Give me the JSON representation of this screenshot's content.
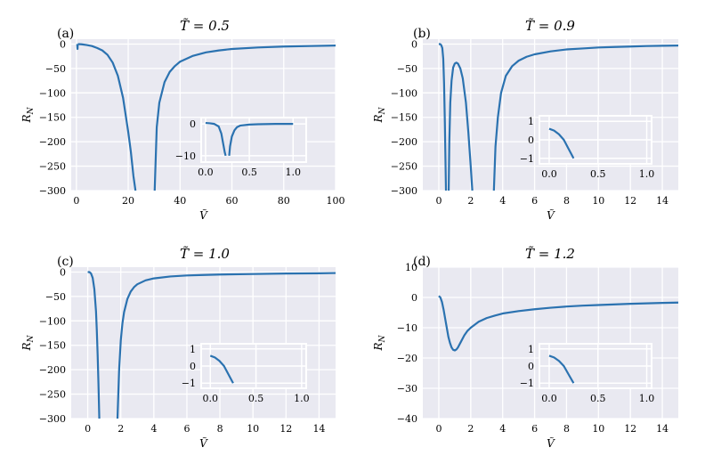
{
  "colors": {
    "plot_bg": "#e9e9f1",
    "grid": "#ffffff",
    "line": "#2b72b0"
  },
  "chart_data": [
    {
      "type": "line",
      "panel_label": "(a)",
      "title": "T̃ = 0.5",
      "xlabel": "Ṽ",
      "ylabel": "R_N",
      "xlim": [
        -2,
        100
      ],
      "ylim": [
        -300,
        10
      ],
      "xticks": [
        0,
        20,
        40,
        60,
        80,
        100
      ],
      "yticks": [
        0,
        -50,
        -100,
        -150,
        -200,
        -250,
        -300
      ],
      "xtick_labels": [
        "0",
        "20",
        "40",
        "60",
        "80",
        "100"
      ],
      "ytick_labels": [
        "0",
        "−50",
        "−100",
        "−150",
        "−200",
        "−250",
        "−300"
      ],
      "series": [
        {
          "x": [
            0.3,
            0.35,
            0.4,
            0.45,
            0.5,
            0.55,
            0.6
          ],
          "y": [
            0,
            -3,
            -8,
            -10,
            -3,
            -1,
            0
          ]
        },
        {
          "x": [
            0.6,
            2,
            4,
            6,
            8,
            10,
            12,
            14,
            16,
            18,
            20,
            21,
            22,
            22.8
          ],
          "y": [
            0,
            -0.5,
            -2,
            -4,
            -8,
            -13,
            -22,
            -38,
            -65,
            -110,
            -180,
            -220,
            -270,
            -300
          ]
        },
        {
          "x": [
            30.2,
            31,
            32,
            34,
            36,
            38,
            40,
            45,
            50,
            55,
            60,
            70,
            80,
            90,
            100
          ],
          "y": [
            -300,
            -170,
            -120,
            -78,
            -57,
            -45,
            -36,
            -24,
            -17,
            -13,
            -10,
            -7,
            -5,
            -4,
            -3
          ]
        }
      ],
      "inset": {
        "xlim": [
          -0.05,
          1.15
        ],
        "ylim": [
          -12,
          2
        ],
        "xticks": [
          0,
          0.5,
          1
        ],
        "yticks": [
          0,
          -10
        ],
        "xtick_labels": [
          "0.0",
          "0.5",
          "1.0"
        ],
        "ytick_labels": [
          "0",
          "−10"
        ],
        "series": [
          {
            "x": [
              0,
              0.05,
              0.1,
              0.15,
              0.18,
              0.2,
              0.22,
              0.23
            ],
            "y": [
              0.3,
              0.2,
              0,
              -0.8,
              -3,
              -6,
              -9,
              -10
            ]
          },
          {
            "x": [
              0.27,
              0.28,
              0.3,
              0.33,
              0.36,
              0.4,
              0.5,
              0.6,
              0.8,
              1.0
            ],
            "y": [
              -10,
              -7,
              -4,
              -2,
              -1,
              -0.5,
              -0.2,
              -0.1,
              0,
              0
            ]
          }
        ]
      }
    },
    {
      "type": "line",
      "panel_label": "(b)",
      "title": "T̃ = 0.9",
      "xlabel": "Ṽ",
      "ylabel": "R_N",
      "xlim": [
        -1,
        15
      ],
      "ylim": [
        -300,
        10
      ],
      "xticks": [
        0,
        2,
        4,
        6,
        8,
        10,
        12,
        14
      ],
      "yticks": [
        0,
        -50,
        -100,
        -150,
        -200,
        -250,
        -300
      ],
      "xtick_labels": [
        "0",
        "2",
        "4",
        "6",
        "8",
        "10",
        "12",
        "14"
      ],
      "ytick_labels": [
        "0",
        "−50",
        "−100",
        "−150",
        "−200",
        "−250",
        "−300"
      ],
      "series": [
        {
          "x": [
            0,
            0.08,
            0.15,
            0.22,
            0.28,
            0.33,
            0.38,
            0.42,
            0.45
          ],
          "y": [
            0,
            0,
            -2,
            -8,
            -30,
            -80,
            -160,
            -240,
            -300
          ]
        },
        {
          "x": [
            0.62,
            0.66,
            0.72,
            0.8,
            0.9,
            1.0,
            1.1,
            1.2,
            1.35,
            1.5,
            1.7,
            1.85,
            2.0,
            2.1
          ],
          "y": [
            -300,
            -200,
            -120,
            -75,
            -48,
            -40,
            -38,
            -40,
            -50,
            -70,
            -120,
            -180,
            -250,
            -300
          ]
        },
        {
          "x": [
            3.45,
            3.55,
            3.7,
            3.9,
            4.2,
            4.6,
            5,
            5.5,
            6,
            7,
            8,
            9,
            10,
            11,
            12,
            13,
            14,
            15
          ],
          "y": [
            -300,
            -210,
            -150,
            -100,
            -65,
            -45,
            -34,
            -26,
            -21,
            -15,
            -11,
            -9,
            -7,
            -6,
            -5,
            -4,
            -3.5,
            -3
          ]
        }
      ],
      "inset": {
        "xlim": [
          -0.1,
          1.05
        ],
        "ylim": [
          -1.3,
          1.3
        ],
        "xticks": [
          0,
          0.5,
          1
        ],
        "yticks": [
          1,
          0,
          -1
        ],
        "xtick_labels": [
          "0.0",
          "0.5",
          "1.0"
        ],
        "ytick_labels": [
          "1",
          "0",
          "−1"
        ],
        "series": [
          {
            "x": [
              0,
              0.05,
              0.1,
              0.15,
              0.2,
              0.25
            ],
            "y": [
              0.6,
              0.5,
              0.3,
              0,
              -0.5,
              -1
            ]
          }
        ]
      }
    },
    {
      "type": "line",
      "panel_label": "(c)",
      "title": "T̃ = 1.0",
      "xlabel": "Ṽ",
      "ylabel": "R_N",
      "xlim": [
        -1,
        15
      ],
      "ylim": [
        -300,
        10
      ],
      "xticks": [
        0,
        2,
        4,
        6,
        8,
        10,
        12,
        14
      ],
      "yticks": [
        0,
        -50,
        -100,
        -150,
        -200,
        -250,
        -300
      ],
      "xtick_labels": [
        "0",
        "2",
        "4",
        "6",
        "8",
        "10",
        "12",
        "14"
      ],
      "ytick_labels": [
        "0",
        "−50",
        "−100",
        "−150",
        "−200",
        "−250",
        "−300"
      ],
      "series": [
        {
          "x": [
            0,
            0.1,
            0.2,
            0.3,
            0.4,
            0.5,
            0.55,
            0.6,
            0.65,
            0.7
          ],
          "y": [
            0,
            0,
            -3,
            -12,
            -35,
            -80,
            -120,
            -170,
            -230,
            -300
          ]
        },
        {
          "x": [
            1.8,
            1.85,
            1.9,
            2.0,
            2.1,
            2.2,
            2.4,
            2.6,
            2.8,
            3.0,
            3.5,
            4,
            5,
            6,
            7,
            8,
            10,
            12,
            14,
            15
          ],
          "y": [
            -300,
            -250,
            -200,
            -140,
            -105,
            -82,
            -55,
            -40,
            -31,
            -25,
            -17,
            -13,
            -9,
            -7,
            -6,
            -5,
            -4,
            -3,
            -2.5,
            -2
          ]
        }
      ],
      "inset": {
        "xlim": [
          -0.1,
          1.05
        ],
        "ylim": [
          -1.3,
          1.3
        ],
        "xticks": [
          0,
          0.5,
          1
        ],
        "yticks": [
          1,
          0,
          -1
        ],
        "xtick_labels": [
          "0.0",
          "0.5",
          "1.0"
        ],
        "ytick_labels": [
          "1",
          "0",
          "−1"
        ],
        "series": [
          {
            "x": [
              0,
              0.05,
              0.1,
              0.15,
              0.2,
              0.25
            ],
            "y": [
              0.6,
              0.5,
              0.3,
              0,
              -0.5,
              -1
            ]
          }
        ]
      }
    },
    {
      "type": "line",
      "panel_label": "(d)",
      "title": "T̃ = 1.2",
      "xlabel": "Ṽ",
      "ylabel": "R_N",
      "xlim": [
        -1,
        15
      ],
      "ylim": [
        -40,
        10
      ],
      "xticks": [
        0,
        2,
        4,
        6,
        8,
        10,
        12,
        14
      ],
      "yticks": [
        10,
        0,
        -10,
        -20,
        -30,
        -40
      ],
      "xtick_labels": [
        "0",
        "2",
        "4",
        "6",
        "8",
        "10",
        "12",
        "14"
      ],
      "ytick_labels": [
        "10",
        "0",
        "−10",
        "−20",
        "−30",
        "−40"
      ],
      "series": [
        {
          "x": [
            0,
            0.1,
            0.2,
            0.3,
            0.4,
            0.5,
            0.6,
            0.7,
            0.8,
            0.9,
            1.0,
            1.1,
            1.2,
            1.4,
            1.6,
            1.8,
            2.0,
            2.5,
            3,
            3.5,
            4,
            5,
            6,
            7,
            8,
            9,
            10,
            12,
            14,
            15
          ],
          "y": [
            0.5,
            0,
            -1.5,
            -4,
            -7,
            -10,
            -13,
            -15,
            -16.5,
            -17.3,
            -17.5,
            -17.2,
            -16.5,
            -14.5,
            -12.5,
            -11,
            -10,
            -8,
            -6.8,
            -6,
            -5.3,
            -4.5,
            -3.9,
            -3.4,
            -3,
            -2.7,
            -2.5,
            -2.1,
            -1.8,
            -1.7
          ]
        }
      ],
      "inset": {
        "xlim": [
          -0.1,
          1.05
        ],
        "ylim": [
          -1.3,
          1.3
        ],
        "xticks": [
          0,
          0.5,
          1
        ],
        "yticks": [
          1,
          0,
          -1
        ],
        "xtick_labels": [
          "0.0",
          "0.5",
          "1.0"
        ],
        "ytick_labels": [
          "1",
          "0",
          "−1"
        ],
        "series": [
          {
            "x": [
              0,
              0.05,
              0.1,
              0.15,
              0.2,
              0.25
            ],
            "y": [
              0.6,
              0.5,
              0.3,
              0,
              -0.5,
              -1
            ]
          }
        ]
      }
    }
  ]
}
